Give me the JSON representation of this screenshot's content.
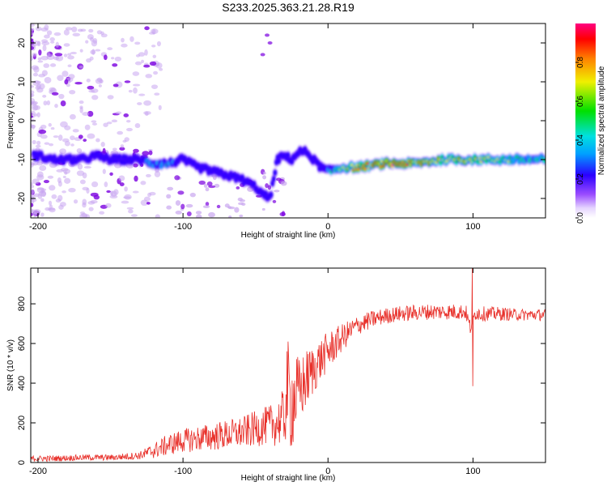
{
  "title": "S233.2025.363.21.28.R19",
  "colors": {
    "line": "#e8302a",
    "purple": "#7a00e0",
    "light_purple": "#c9a6f0",
    "blue": "#1010ff",
    "cyan": "#00d8e8",
    "green": "#20e020",
    "yellow": "#f0f000",
    "red": "#e01010"
  },
  "chart_data": [
    {
      "type": "heatmap",
      "xlabel": "Height of straight line (km)",
      "ylabel": "Frequency (Hz)",
      "xlim": [
        -205,
        150
      ],
      "ylim": [
        -25,
        25
      ],
      "xticks": [
        -200,
        -100,
        0,
        100
      ],
      "xtick_labels": [
        "-200",
        "-100",
        "0",
        "100"
      ],
      "yticks": [
        20,
        10,
        0,
        -10,
        -20
      ],
      "ytick_labels": [
        "20",
        "10",
        "0",
        "-10",
        "-20"
      ],
      "colorbar": {
        "label": "Normalized spectral amplitude",
        "range": [
          0,
          1
        ],
        "ticks": [
          0.0,
          0.2,
          0.4,
          0.6,
          0.8
        ],
        "tick_labels": [
          "0.0",
          "0.2",
          "0.4",
          "0.6",
          "0.8"
        ]
      },
      "ridge": {
        "x": [
          -200,
          -190,
          -180,
          -170,
          -160,
          -150,
          -140,
          -130,
          -120,
          -110,
          -100,
          -90,
          -80,
          -70,
          -60,
          -50,
          -45,
          -40,
          -35,
          -30,
          -25,
          -20,
          -15,
          -10,
          -5,
          0,
          10,
          20,
          40,
          60,
          80,
          90,
          100,
          120,
          150
        ],
        "frequency_hz": [
          -9,
          -10,
          -10,
          -10,
          -9,
          -10,
          -10,
          -10,
          -11,
          -11,
          -10,
          -12,
          -13,
          -14,
          -15,
          -17,
          -19,
          -20,
          -10,
          -9,
          -10,
          -8,
          -8,
          -10,
          -12,
          -13,
          -12,
          -12,
          -11,
          -11,
          -10,
          -10,
          -10,
          -10,
          -10
        ],
        "amplitude": [
          0.3,
          0.35,
          0.25,
          0.2,
          0.25,
          0.35,
          0.3,
          0.35,
          0.4,
          0.45,
          0.3,
          0.3,
          0.3,
          0.3,
          0.3,
          0.3,
          0.3,
          0.25,
          0.25,
          0.2,
          0.25,
          0.25,
          0.2,
          0.3,
          0.35,
          0.45,
          0.7,
          0.8,
          0.9,
          0.8,
          0.75,
          0.8,
          0.7,
          0.65,
          0.55
        ]
      }
    },
    {
      "type": "line",
      "xlabel": "Height of straight line (km)",
      "ylabel": "SNR (10 * v/v)",
      "xlim": [
        -205,
        150
      ],
      "ylim": [
        0,
        980
      ],
      "xticks": [
        -200,
        -100,
        0,
        100
      ],
      "xtick_labels": [
        "-200",
        "-100",
        "0",
        "100"
      ],
      "yticks": [
        0,
        200,
        400,
        600,
        800
      ],
      "ytick_labels": [
        "0",
        "200",
        "400",
        "600",
        "800"
      ],
      "series": [
        {
          "name": "SNR",
          "x": [
            -205,
            -190,
            -170,
            -150,
            -130,
            -120,
            -110,
            -100,
            -90,
            -80,
            -70,
            -60,
            -50,
            -40,
            -35,
            -30,
            -28,
            -26,
            -24,
            -22,
            -20,
            -15,
            -10,
            -5,
            0,
            10,
            20,
            30,
            40,
            50,
            60,
            70,
            80,
            90,
            95,
            98,
            100,
            102,
            105,
            110,
            120,
            130,
            140,
            150
          ],
          "values": [
            20,
            20,
            25,
            25,
            35,
            60,
            90,
            110,
            120,
            130,
            140,
            150,
            170,
            190,
            200,
            230,
            380,
            300,
            320,
            340,
            350,
            420,
            470,
            520,
            560,
            630,
            690,
            720,
            740,
            750,
            755,
            760,
            760,
            760,
            760,
            680,
            720,
            760,
            750,
            750,
            750,
            745,
            745,
            745
          ],
          "noise_amplitude": [
            15,
            15,
            15,
            15,
            20,
            40,
            55,
            60,
            65,
            70,
            75,
            80,
            90,
            100,
            120,
            150,
            250,
            260,
            240,
            220,
            180,
            150,
            130,
            110,
            100,
            70,
            50,
            45,
            40,
            40,
            40,
            40,
            40,
            40,
            40,
            40,
            40,
            40,
            40,
            35,
            35,
            30,
            30,
            30
          ]
        }
      ],
      "annotations": {
        "spike_high": {
          "x": 99.5,
          "value": 980
        },
        "spike_low": {
          "x": 99.5,
          "value": 385
        }
      }
    }
  ]
}
